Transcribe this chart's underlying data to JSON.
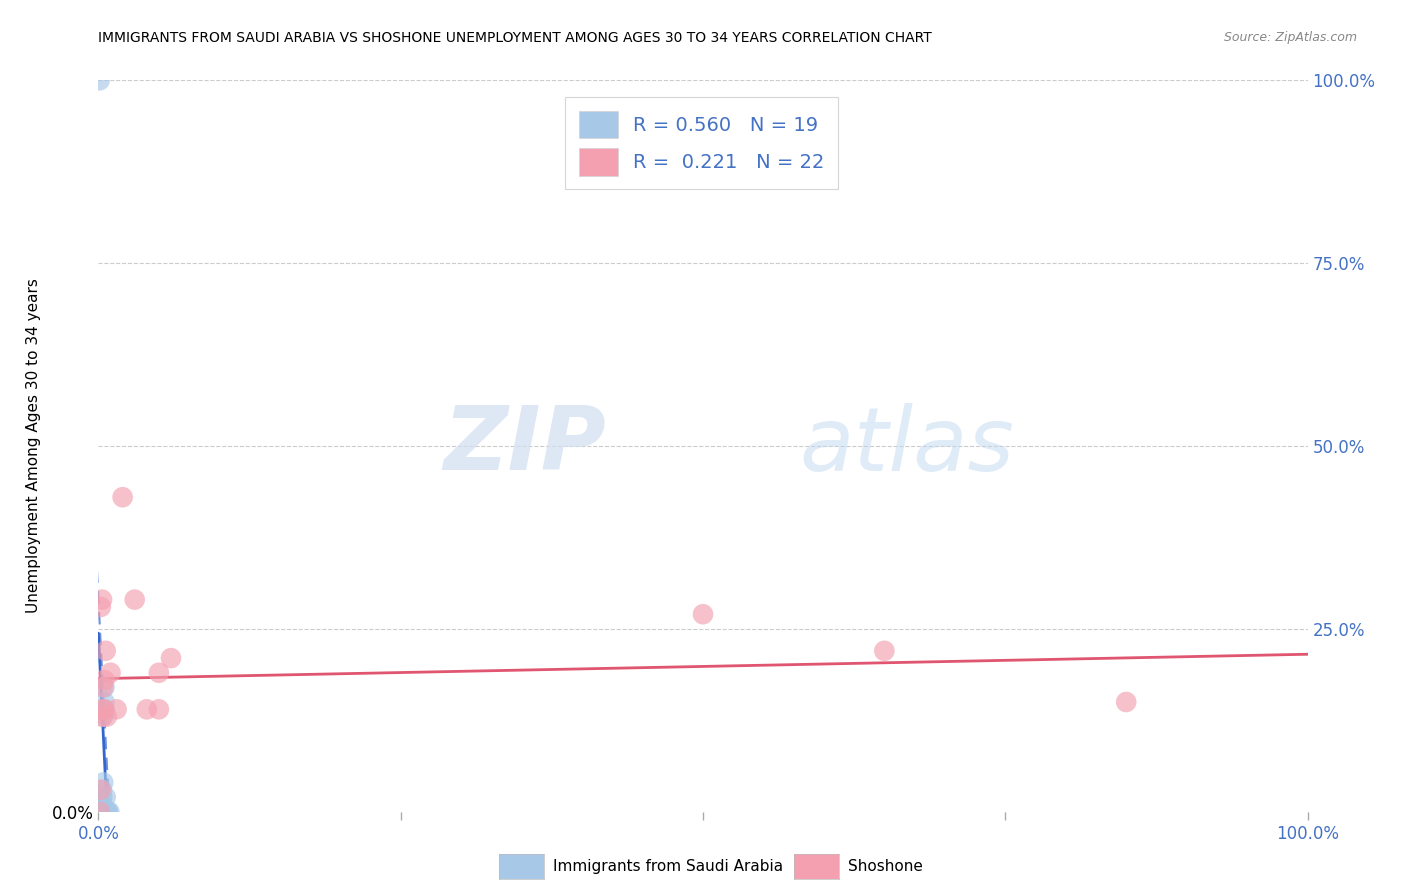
{
  "title": "IMMIGRANTS FROM SAUDI ARABIA VS SHOSHONE UNEMPLOYMENT AMONG AGES 30 TO 34 YEARS CORRELATION CHART",
  "source": "Source: ZipAtlas.com",
  "axis_color": "#4472c4",
  "ylabel": "Unemployment Among Ages 30 to 34 years",
  "xlim": [
    0,
    1.0
  ],
  "ylim": [
    0,
    1.0
  ],
  "yticks": [
    0.0,
    0.25,
    0.5,
    0.75,
    1.0
  ],
  "blue_color": "#a8c8e8",
  "pink_color": "#f4a0b0",
  "blue_line_color": "#3366cc",
  "pink_line_color": "#e05570",
  "R_blue": 0.56,
  "N_blue": 19,
  "R_pink": 0.221,
  "N_pink": 22,
  "watermark_zip": "ZIP",
  "watermark_atlas": "atlas",
  "blue_scatter_x": [
    0.001,
    0.002,
    0.002,
    0.003,
    0.003,
    0.003,
    0.003,
    0.004,
    0.004,
    0.005,
    0.005,
    0.005,
    0.006,
    0.006,
    0.007,
    0.007,
    0.008,
    0.009,
    0.001
  ],
  "blue_scatter_y": [
    0.0,
    0.0,
    0.01,
    0.01,
    0.02,
    0.02,
    0.03,
    0.04,
    0.13,
    0.14,
    0.15,
    0.17,
    0.0,
    0.02,
    0.0,
    0.0,
    0.0,
    0.0,
    1.0
  ],
  "pink_scatter_x": [
    0.001,
    0.002,
    0.002,
    0.003,
    0.003,
    0.003,
    0.004,
    0.005,
    0.005,
    0.006,
    0.007,
    0.01,
    0.015,
    0.02,
    0.03,
    0.04,
    0.05,
    0.05,
    0.06,
    0.5,
    0.65,
    0.85
  ],
  "pink_scatter_y": [
    0.0,
    0.03,
    0.28,
    0.14,
    0.29,
    0.13,
    0.17,
    0.14,
    0.18,
    0.22,
    0.13,
    0.19,
    0.14,
    0.43,
    0.29,
    0.14,
    0.14,
    0.19,
    0.21,
    0.27,
    0.22,
    0.15
  ],
  "background_color": "#ffffff",
  "grid_color": "#cccccc",
  "legend_label_blue": "Immigrants from Saudi Arabia",
  "legend_label_pink": "Shoshone"
}
